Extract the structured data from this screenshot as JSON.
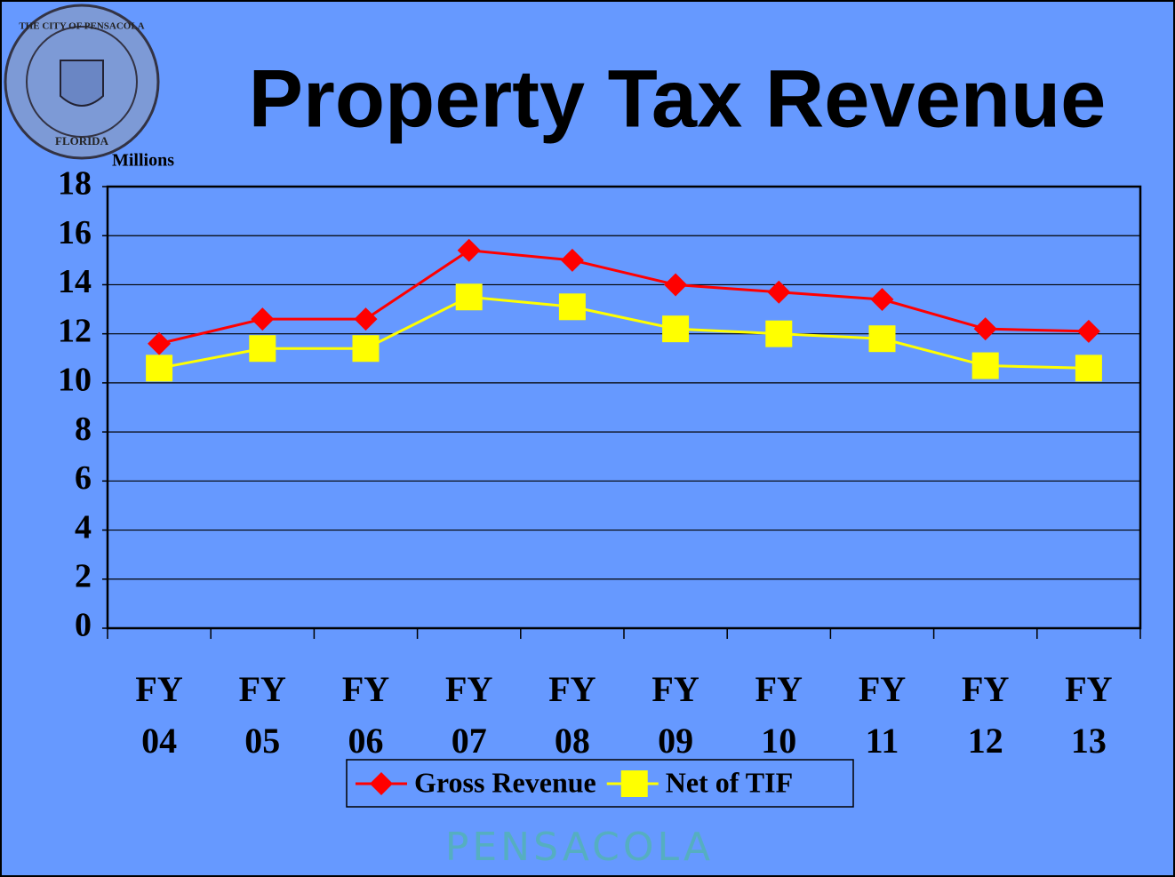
{
  "chart_data": {
    "type": "line",
    "title": "Property Tax Revenue",
    "ylabel": "Millions",
    "seal_top": "THE CITY OF PENSACOLA",
    "seal_bottom": "FLORIDA",
    "footer_logo": "PENSACOLA",
    "categories": [
      "FY 04",
      "FY 05",
      "FY 06",
      "FY 07",
      "FY 08",
      "FY 09",
      "FY 10",
      "FY 11",
      "FY 12",
      "FY 13"
    ],
    "series": [
      {
        "name": "Gross Revenue",
        "color": "#ff0000",
        "marker": "diamond",
        "values": [
          11.6,
          12.6,
          12.6,
          15.4,
          15.0,
          14.0,
          13.7,
          13.4,
          12.2,
          12.1
        ]
      },
      {
        "name": "Net of TIF",
        "color": "#ffff00",
        "marker": "square",
        "values": [
          10.6,
          11.4,
          11.4,
          13.5,
          13.1,
          12.2,
          12.0,
          11.8,
          10.7,
          10.6
        ]
      }
    ],
    "ylim": [
      0,
      18
    ],
    "yticks": [
      0,
      2,
      4,
      6,
      8,
      10,
      12,
      14,
      16,
      18
    ],
    "grid": true
  }
}
